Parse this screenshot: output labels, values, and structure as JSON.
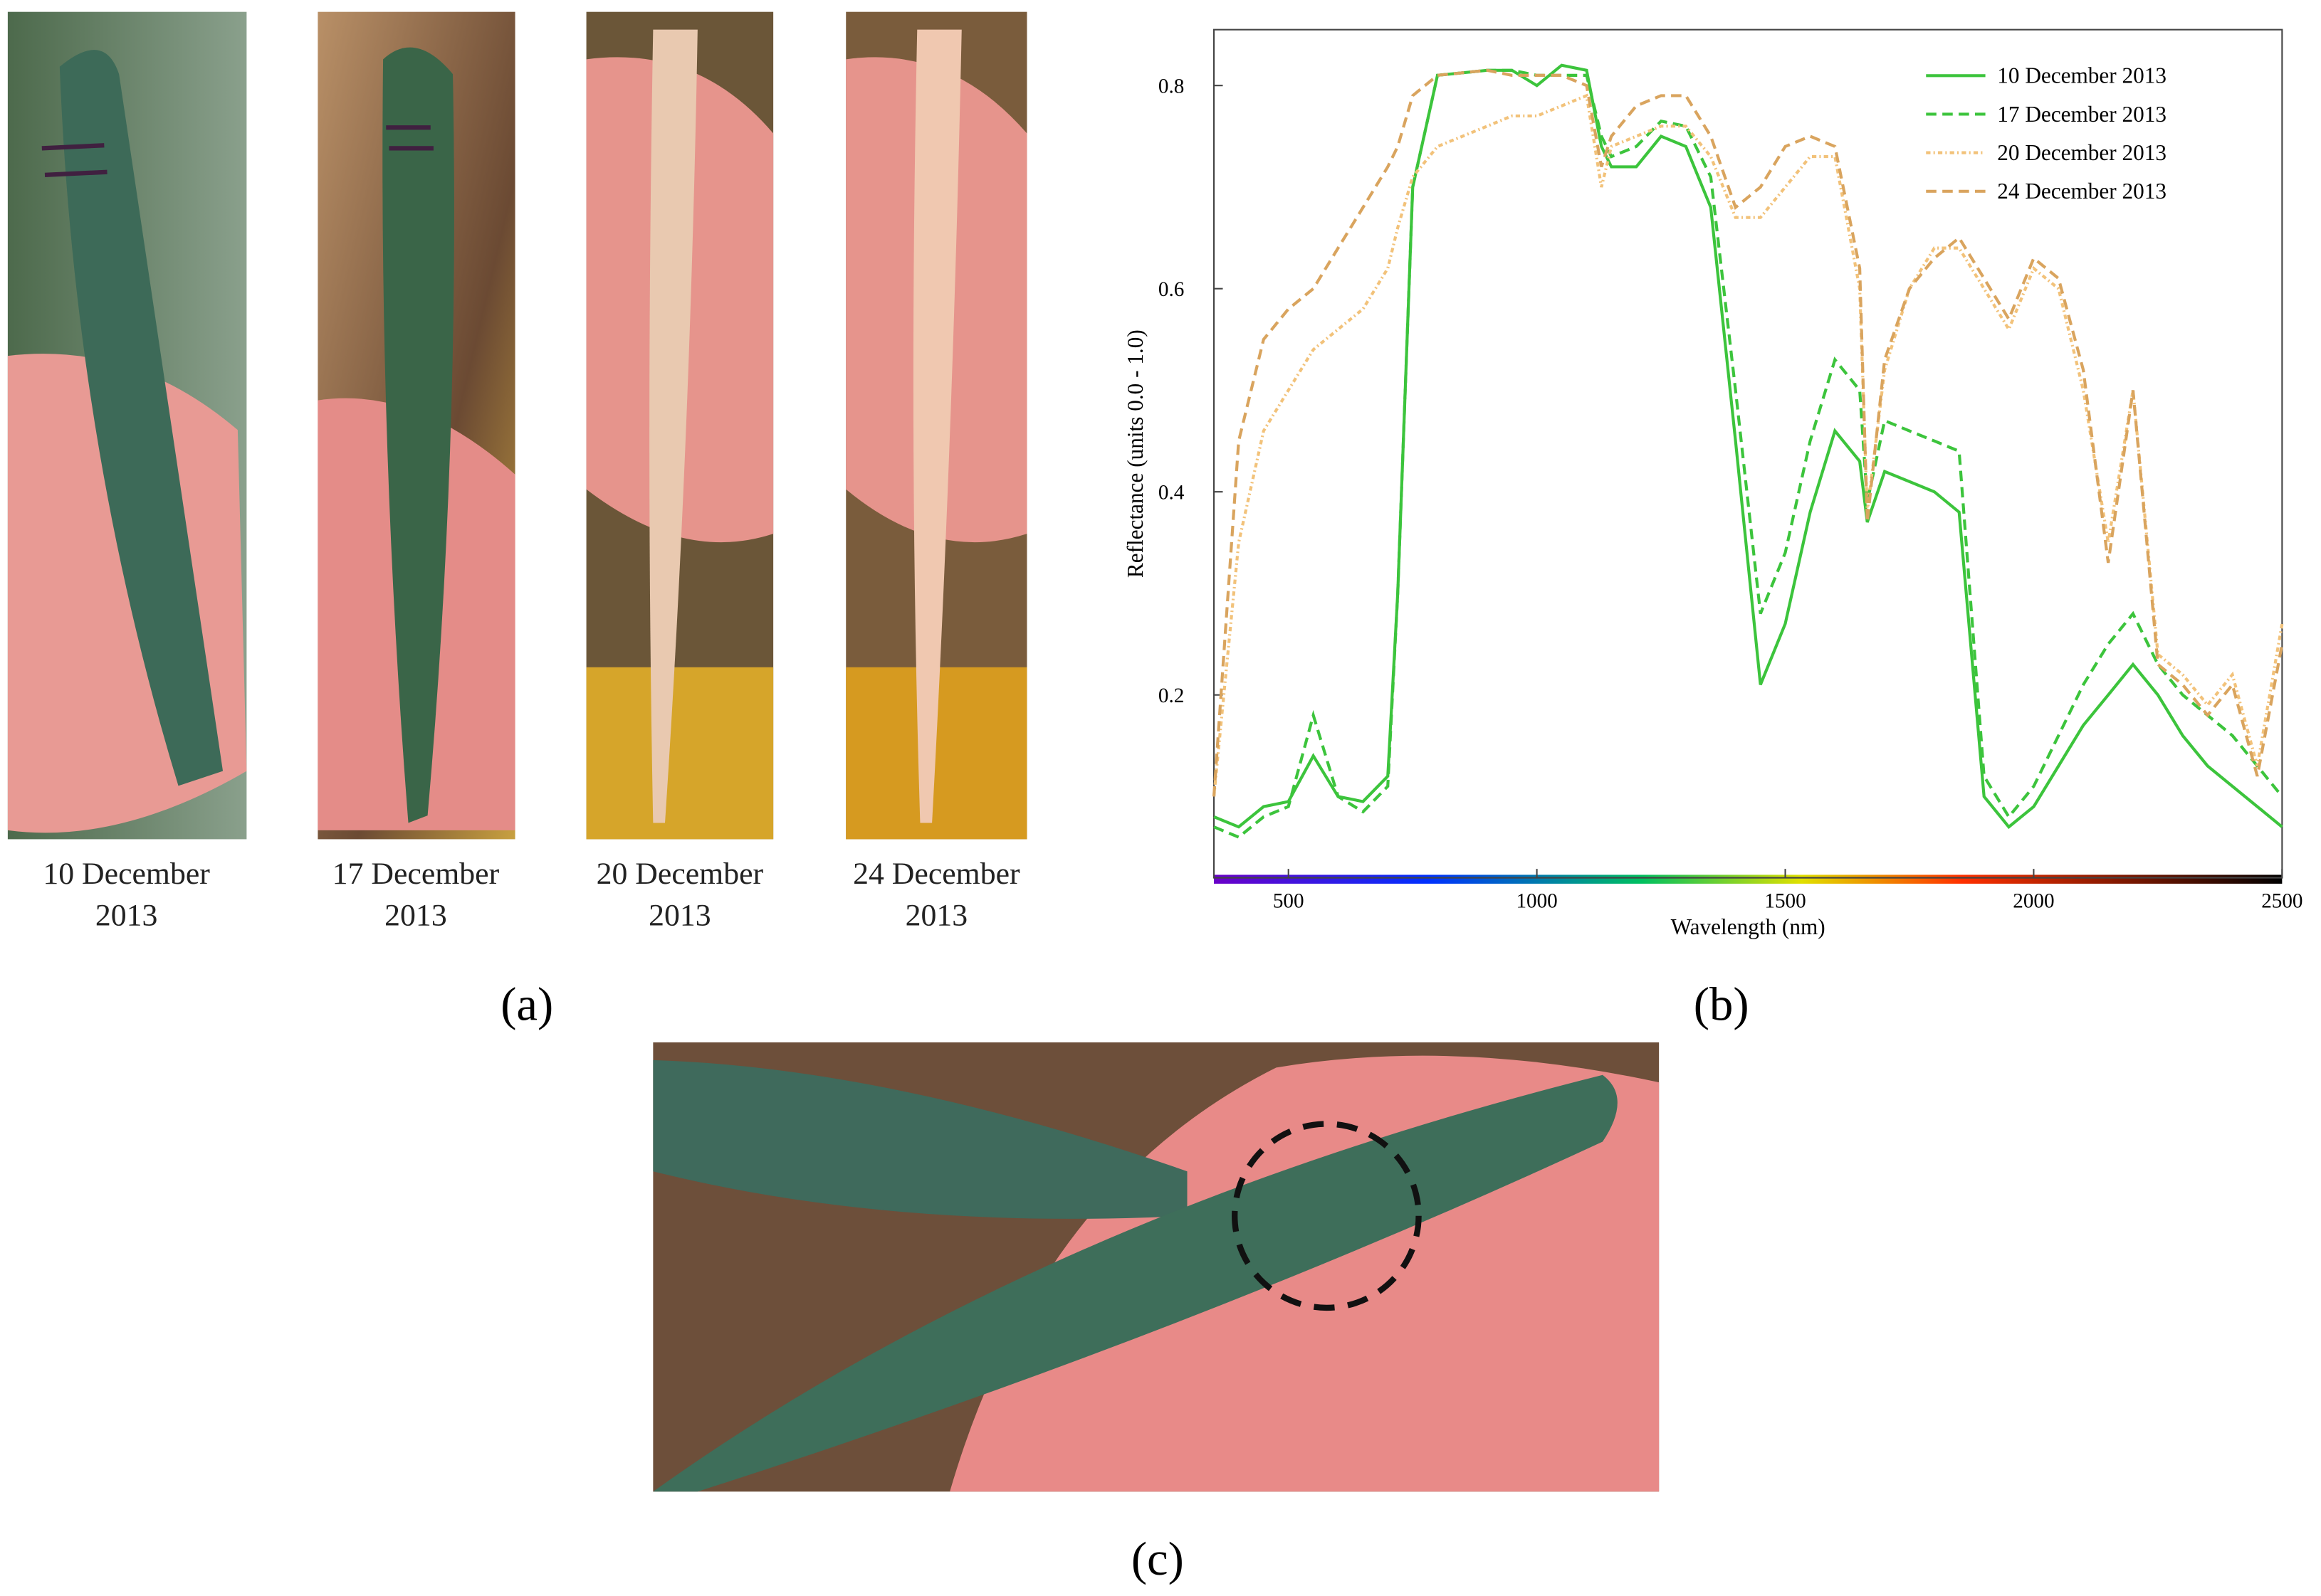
{
  "panels": {
    "a": {
      "label": "(a)",
      "captions": [
        "10 December 2013",
        "17 December 2013",
        "20 December 2013",
        "24 December 2013"
      ]
    },
    "b": {
      "label": "(b)"
    },
    "c": {
      "label": "(c)"
    }
  },
  "chart_data": {
    "type": "line",
    "xlabel": "Wavelength (nm)",
    "ylabel": "Reflectance (units 0.0 - 1.0)",
    "xlim": [
      350,
      2500
    ],
    "ylim": [
      0.02,
      0.855
    ],
    "xticks": [
      500,
      1000,
      1500,
      2000,
      2500
    ],
    "yticks": [
      0.2,
      0.4,
      0.6,
      0.8
    ],
    "legend": "upper right",
    "x": [
      350,
      400,
      450,
      500,
      550,
      600,
      650,
      700,
      720,
      750,
      800,
      900,
      950,
      1000,
      1050,
      1100,
      1130,
      1150,
      1200,
      1250,
      1300,
      1350,
      1400,
      1450,
      1500,
      1550,
      1600,
      1650,
      1665,
      1700,
      1750,
      1800,
      1850,
      1900,
      1950,
      2000,
      2050,
      2100,
      2150,
      2200,
      2250,
      2300,
      2350,
      2400,
      2450,
      2500
    ],
    "series": [
      {
        "name": "10 December 2013",
        "color": "#3cc43c",
        "dash": "solid",
        "values": [
          0.08,
          0.07,
          0.09,
          0.095,
          0.14,
          0.1,
          0.095,
          0.12,
          0.3,
          0.7,
          0.81,
          0.815,
          0.815,
          0.8,
          0.82,
          0.815,
          0.74,
          0.72,
          0.72,
          0.75,
          0.74,
          0.68,
          0.45,
          0.21,
          0.27,
          0.38,
          0.46,
          0.43,
          0.37,
          0.42,
          0.41,
          0.4,
          0.38,
          0.1,
          0.07,
          0.09,
          0.13,
          0.17,
          0.2,
          0.23,
          0.2,
          0.16,
          0.13,
          0.11,
          0.09,
          0.07
        ]
      },
      {
        "name": "17 December 2013",
        "color": "#3cc43c",
        "dash": "dashed",
        "values": [
          0.07,
          0.06,
          0.08,
          0.09,
          0.18,
          0.1,
          0.085,
          0.11,
          0.3,
          0.7,
          0.81,
          0.815,
          0.815,
          0.81,
          0.81,
          0.81,
          0.75,
          0.73,
          0.74,
          0.765,
          0.76,
          0.71,
          0.5,
          0.28,
          0.34,
          0.45,
          0.53,
          0.5,
          0.39,
          0.47,
          0.46,
          0.45,
          0.44,
          0.12,
          0.08,
          0.11,
          0.16,
          0.21,
          0.25,
          0.28,
          0.23,
          0.2,
          0.18,
          0.16,
          0.13,
          0.1
        ]
      },
      {
        "name": "20 December 2013",
        "color": "#f2c27a",
        "dash": "dotted",
        "values": [
          0.1,
          0.35,
          0.46,
          0.5,
          0.54,
          0.56,
          0.58,
          0.62,
          0.66,
          0.71,
          0.74,
          0.76,
          0.77,
          0.77,
          0.78,
          0.79,
          0.7,
          0.74,
          0.75,
          0.76,
          0.76,
          0.73,
          0.67,
          0.67,
          0.7,
          0.73,
          0.73,
          0.6,
          0.38,
          0.52,
          0.6,
          0.64,
          0.64,
          0.6,
          0.56,
          0.62,
          0.6,
          0.5,
          0.35,
          0.5,
          0.24,
          0.22,
          0.19,
          0.22,
          0.13,
          0.27
        ]
      },
      {
        "name": "24 December 2013",
        "color": "#d9a45e",
        "dash": "dashed",
        "values": [
          0.1,
          0.45,
          0.55,
          0.58,
          0.6,
          0.64,
          0.68,
          0.72,
          0.74,
          0.79,
          0.81,
          0.815,
          0.81,
          0.81,
          0.81,
          0.8,
          0.72,
          0.75,
          0.78,
          0.79,
          0.79,
          0.75,
          0.68,
          0.7,
          0.74,
          0.75,
          0.74,
          0.62,
          0.37,
          0.53,
          0.6,
          0.63,
          0.65,
          0.61,
          0.57,
          0.63,
          0.61,
          0.52,
          0.33,
          0.5,
          0.23,
          0.21,
          0.18,
          0.21,
          0.12,
          0.25
        ]
      }
    ]
  }
}
